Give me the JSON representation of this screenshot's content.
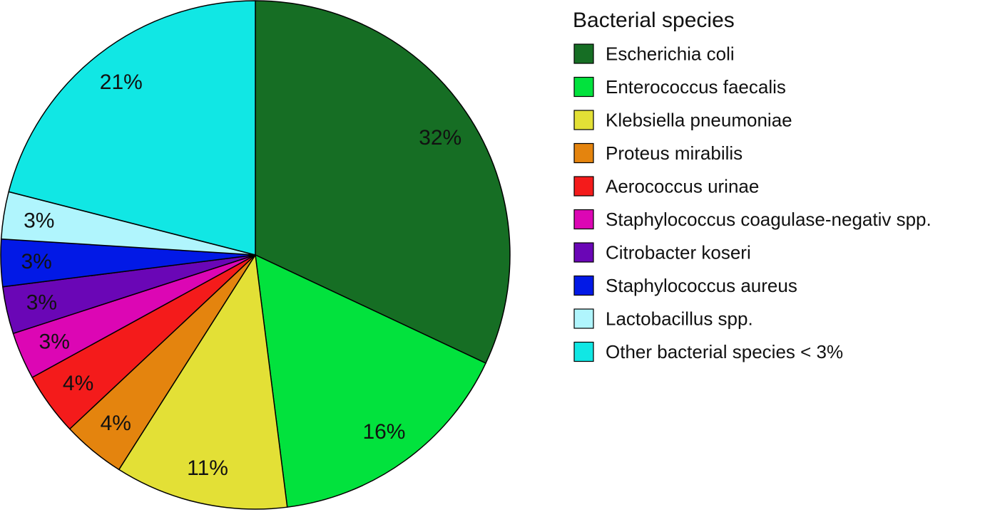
{
  "chart_data": {
    "type": "pie",
    "legend_title": "Bacterial species",
    "legend_position": "right",
    "start_angle_deg": 0,
    "direction": "clockwise",
    "slices": [
      {
        "name": "Escherichia coli",
        "value": 32,
        "label": "32%",
        "color": "#166e24"
      },
      {
        "name": "Enterococcus faecalis",
        "value": 16,
        "label": "16%",
        "color": "#02e23d"
      },
      {
        "name": "Klebsiella pneumoniae",
        "value": 11,
        "label": "11%",
        "color": "#e3e036"
      },
      {
        "name": "Proteus mirabilis",
        "value": 4,
        "label": "4%",
        "color": "#e4840e"
      },
      {
        "name": "Aerococcus urinae",
        "value": 4,
        "label": "4%",
        "color": "#f41b1b"
      },
      {
        "name": "Staphylococcus coagulase-negativ spp.",
        "value": 3,
        "label": "3%",
        "color": "#dc06b4"
      },
      {
        "name": "Citrobacter koseri",
        "value": 3,
        "label": "3%",
        "color": "#6a06b6"
      },
      {
        "name": "Staphylococcus aureus",
        "value": 3,
        "label": "3%",
        "color": "#0219e6"
      },
      {
        "name": "Lactobacillus spp.",
        "value": 3,
        "label": "3%",
        "color": "#b0f5fd"
      },
      {
        "name": "Other bacterial species < 3%",
        "value": 21,
        "label": "21%",
        "color": "#11e7e4"
      }
    ]
  }
}
